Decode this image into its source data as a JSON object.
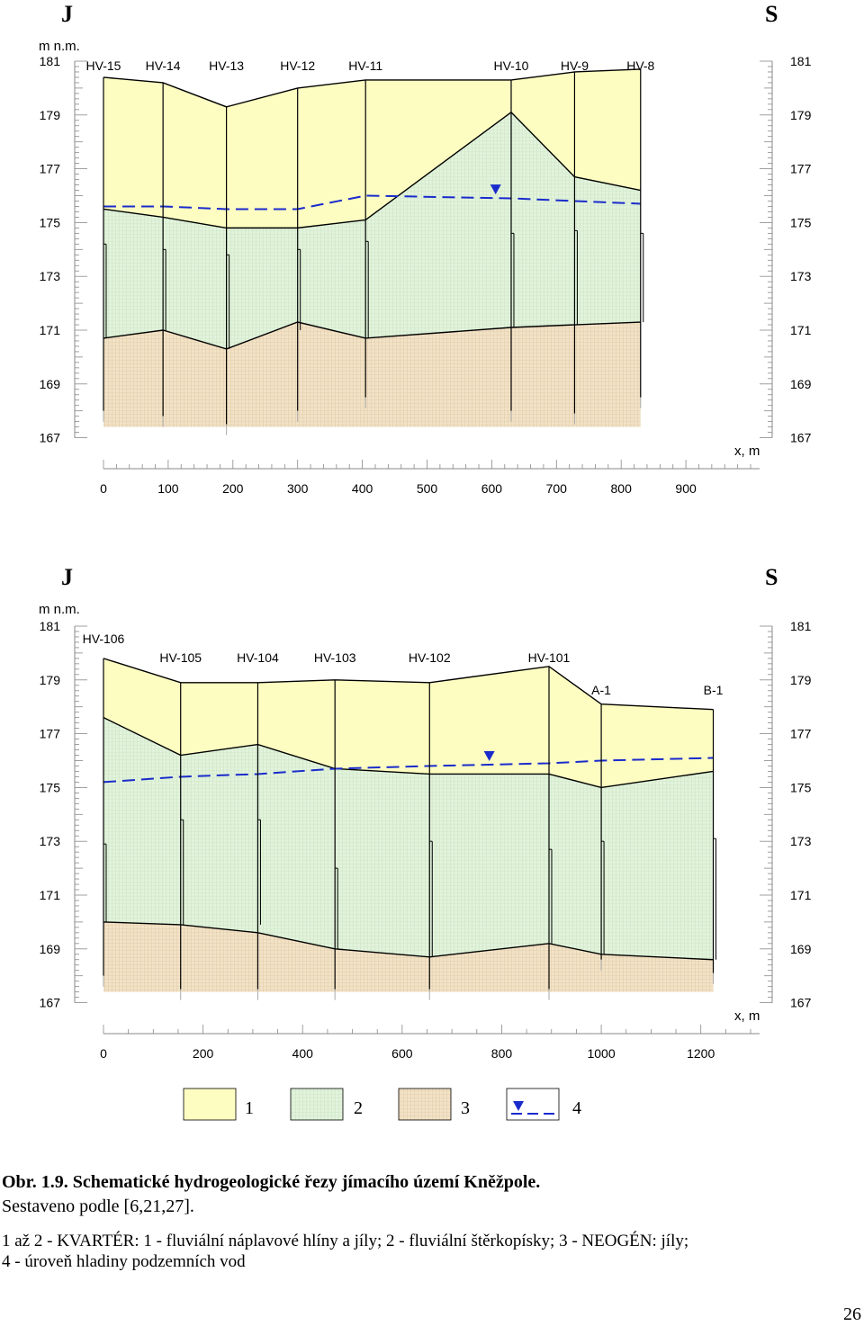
{
  "colors": {
    "layer_1": "#fdfdc2",
    "layer_2": "#e2f3dc",
    "layer_3": "#f2e2c6",
    "water_table": "#1a2bcc",
    "line": "#000000",
    "tick": "#888888"
  },
  "sections": [
    {
      "id": "top",
      "orientation": {
        "left": "J",
        "right": "S"
      },
      "axis_unit": "m n.m.",
      "x_unit": "x, m",
      "y_ticks": [
        "181",
        "179",
        "177",
        "175",
        "173",
        "171",
        "169",
        "167"
      ],
      "y_range": [
        167,
        181
      ],
      "x_ticks": [
        "0",
        "100",
        "200",
        "300",
        "400",
        "500",
        "600",
        "700",
        "800",
        "900"
      ],
      "x_range": [
        0,
        1000
      ],
      "boreholes": [
        {
          "name": "HV-15",
          "x": 0,
          "surface": 180.4,
          "base_q": 175.5,
          "neogene": 170.7,
          "bottom": 168.0,
          "casing_top": 174.2,
          "casing_bottom": 170.7
        },
        {
          "name": "HV-14",
          "x": 92,
          "surface": 180.2,
          "base_q": 175.2,
          "neogene": 171.0,
          "bottom": 167.8,
          "casing_top": 174.0,
          "casing_bottom": 171.0
        },
        {
          "name": "HV-13",
          "x": 190,
          "surface": 179.3,
          "base_q": 174.8,
          "neogene": 170.3,
          "bottom": 167.5,
          "casing_top": 173.8,
          "casing_bottom": 170.3
        },
        {
          "name": "HV-12",
          "x": 300,
          "surface": 180.0,
          "base_q": 174.8,
          "neogene": 171.3,
          "bottom": 168.0,
          "casing_top": 174.0,
          "casing_bottom": 171.0
        },
        {
          "name": "HV-11",
          "x": 405,
          "surface": 180.3,
          "base_q": 175.1,
          "neogene": 170.7,
          "bottom": 168.5,
          "casing_top": 174.3,
          "casing_bottom": 170.7
        },
        {
          "name": "HV-10",
          "x": 630,
          "surface": 180.3,
          "base_q": 179.1,
          "neogene": 171.1,
          "bottom": 168.0,
          "casing_top": 174.6,
          "casing_bottom": 171.1
        },
        {
          "name": "HV-9",
          "x": 728,
          "surface": 180.6,
          "base_q": 176.7,
          "neogene": 171.2,
          "bottom": 167.9,
          "casing_top": 174.7,
          "casing_bottom": 171.2
        },
        {
          "name": "HV-8",
          "x": 830,
          "surface": 180.7,
          "base_q": 176.2,
          "neogene": 171.3,
          "bottom": 168.5,
          "casing_top": 174.6,
          "casing_bottom": 171.3
        }
      ],
      "water_table": [
        [
          0,
          175.6
        ],
        [
          92,
          175.6
        ],
        [
          190,
          175.5
        ],
        [
          300,
          175.5
        ],
        [
          405,
          176.0
        ],
        [
          630,
          175.9
        ],
        [
          728,
          175.8
        ],
        [
          830,
          175.7
        ]
      ],
      "water_marker_x": 606
    },
    {
      "id": "bottom",
      "orientation": {
        "left": "J",
        "right": "S"
      },
      "axis_unit": "m n.m.",
      "x_unit": "x, m",
      "y_ticks": [
        "181",
        "179",
        "177",
        "175",
        "173",
        "171",
        "169",
        "167"
      ],
      "y_range": [
        167,
        181
      ],
      "x_ticks": [
        "0",
        "200",
        "400",
        "600",
        "800",
        "1000",
        "1200"
      ],
      "x_range": [
        0,
        1300
      ],
      "boreholes": [
        {
          "name": "HV-106",
          "x": 0,
          "surface": 179.8,
          "base_q": 177.6,
          "neogene": 170.0,
          "bottom": 168.0,
          "casing_top": 172.9,
          "casing_bottom": 170.0
        },
        {
          "name": "HV-105",
          "x": 155,
          "surface": 178.9,
          "base_q": 176.2,
          "neogene": 169.9,
          "bottom": 167.5,
          "casing_top": 173.8,
          "casing_bottom": 169.9
        },
        {
          "name": "HV-104",
          "x": 310,
          "surface": 178.9,
          "base_q": 176.6,
          "neogene": 169.6,
          "bottom": 167.5,
          "casing_top": 173.8,
          "casing_bottom": 169.9
        },
        {
          "name": "HV-103",
          "x": 465,
          "surface": 179.0,
          "base_q": 175.7,
          "neogene": 169.0,
          "bottom": 167.5,
          "casing_top": 172.0,
          "casing_bottom": 169.0
        },
        {
          "name": "HV-102",
          "x": 655,
          "surface": 178.9,
          "base_q": 175.5,
          "neogene": 168.7,
          "bottom": 167.5,
          "casing_top": 173.0,
          "casing_bottom": 168.7
        },
        {
          "name": "HV-101",
          "x": 895,
          "surface": 179.5,
          "base_q": 175.5,
          "neogene": 169.2,
          "bottom": 167.5,
          "casing_top": 172.7,
          "casing_bottom": 169.2
        },
        {
          "name": "A-1",
          "x": 1000,
          "surface": 178.1,
          "base_q": 175.0,
          "neogene": 168.8,
          "bottom": 168.6,
          "casing_top": 173.0,
          "casing_bottom": 168.8
        },
        {
          "name": "B-1",
          "x": 1225,
          "surface": 177.9,
          "base_q": 175.6,
          "neogene": 168.6,
          "bottom": 168.1,
          "casing_top": 173.1,
          "casing_bottom": 168.6
        }
      ],
      "water_table": [
        [
          0,
          175.2
        ],
        [
          155,
          175.4
        ],
        [
          310,
          175.5
        ],
        [
          465,
          175.7
        ],
        [
          655,
          175.8
        ],
        [
          895,
          175.9
        ],
        [
          1000,
          176.0
        ],
        [
          1225,
          176.1
        ]
      ],
      "water_marker_x": 775
    }
  ],
  "legend": [
    {
      "label": "1",
      "kind": "layer_1"
    },
    {
      "label": "2",
      "kind": "layer_2"
    },
    {
      "label": "3",
      "kind": "layer_3"
    },
    {
      "label": "4",
      "kind": "water"
    }
  ],
  "caption": {
    "title": "Obr. 1.9. Schematické hydrogeologické řezy jímacího území Kněžpole.",
    "source": "Sestaveno podle [6,21,27].",
    "description_1": "1 až 2 - KVARTÉR: 1 - fluviální náplavové hlíny a jíly; 2 - fluviální štěrkopísky; 3 - NEOGÉN: jíly;",
    "description_2": "4 - úroveň hladiny podzemních vod"
  },
  "page_number": "26"
}
